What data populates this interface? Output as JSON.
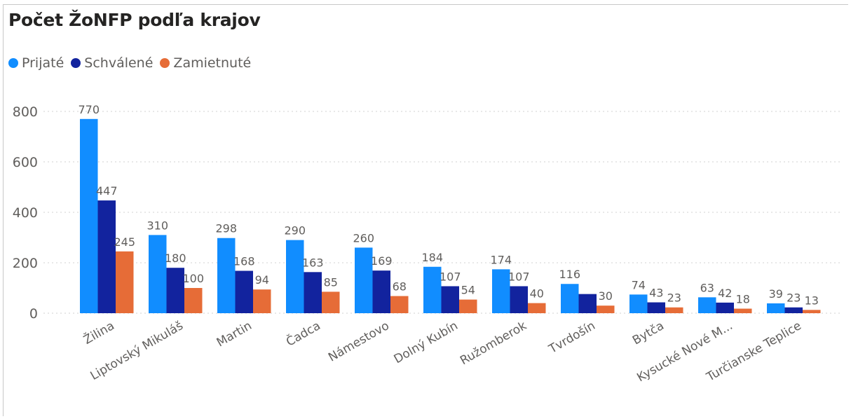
{
  "chart_data": {
    "type": "bar",
    "title": "Počet ŽoNFP podľa krajov",
    "xlabel": "",
    "ylabel": "",
    "ylim": [
      0,
      800
    ],
    "yticks": [
      "0",
      "200",
      "400",
      "600",
      "800"
    ],
    "grid": true,
    "legend_position": "top-left",
    "categories": [
      "Žilina",
      "Liptovský Mikuláš",
      "Martin",
      "Čadca",
      "Námestovo",
      "Dolný Kubín",
      "Ružomberok",
      "Tvrdošín",
      "Bytča",
      "Kysucké Nové M...",
      "Turčianske Teplice"
    ],
    "series": [
      {
        "name": "Prijaté",
        "color": "#118dff",
        "values": [
          770,
          310,
          298,
          290,
          260,
          184,
          174,
          116,
          74,
          63,
          39
        ],
        "labels": [
          "770",
          "310",
          "298",
          "290",
          "260",
          "184",
          "174",
          "116",
          "74",
          "63",
          "39"
        ]
      },
      {
        "name": "Schválené",
        "color": "#12239e",
        "values": [
          447,
          180,
          168,
          163,
          169,
          107,
          107,
          76,
          43,
          42,
          23
        ],
        "labels": [
          "447",
          "180",
          "168",
          "163",
          "169",
          "107",
          "107",
          "",
          "43",
          "42",
          "23"
        ]
      },
      {
        "name": "Zamietnuté",
        "color": "#e66c37",
        "values": [
          245,
          100,
          94,
          85,
          68,
          54,
          40,
          30,
          23,
          18,
          13
        ],
        "labels": [
          "245",
          "100",
          "94",
          "85",
          "68",
          "54",
          "40",
          "30",
          "23",
          "18",
          "13"
        ]
      }
    ]
  }
}
